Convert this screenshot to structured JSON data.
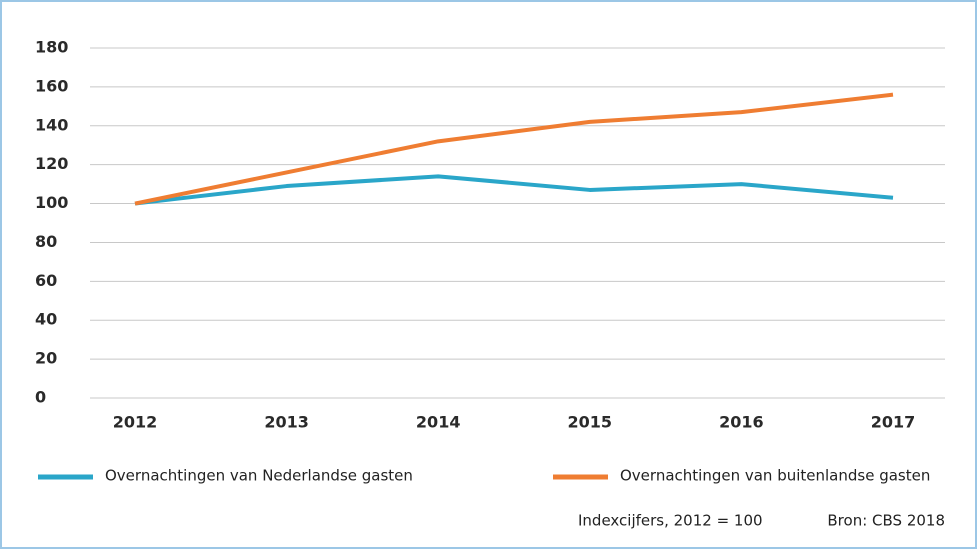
{
  "chart_data": {
    "type": "line",
    "categories": [
      "2012",
      "2013",
      "2014",
      "2015",
      "2016",
      "2017"
    ],
    "series": [
      {
        "name": "Overnachtingen van Nederlandse gasten",
        "color": "#2aa6c9",
        "values": [
          100,
          109,
          114,
          107,
          110,
          103
        ]
      },
      {
        "name": "Overnachtingen van buitenlandse gasten",
        "color": "#ef7d32",
        "values": [
          100,
          116,
          132,
          142,
          147,
          156
        ]
      }
    ],
    "ylim": [
      0,
      180
    ],
    "yticks": [
      0,
      20,
      40,
      60,
      80,
      100,
      120,
      140,
      160,
      180
    ],
    "grid": true,
    "note": "Indexcijfers, 2012 = 100",
    "source": "Bron: CBS 2018"
  }
}
